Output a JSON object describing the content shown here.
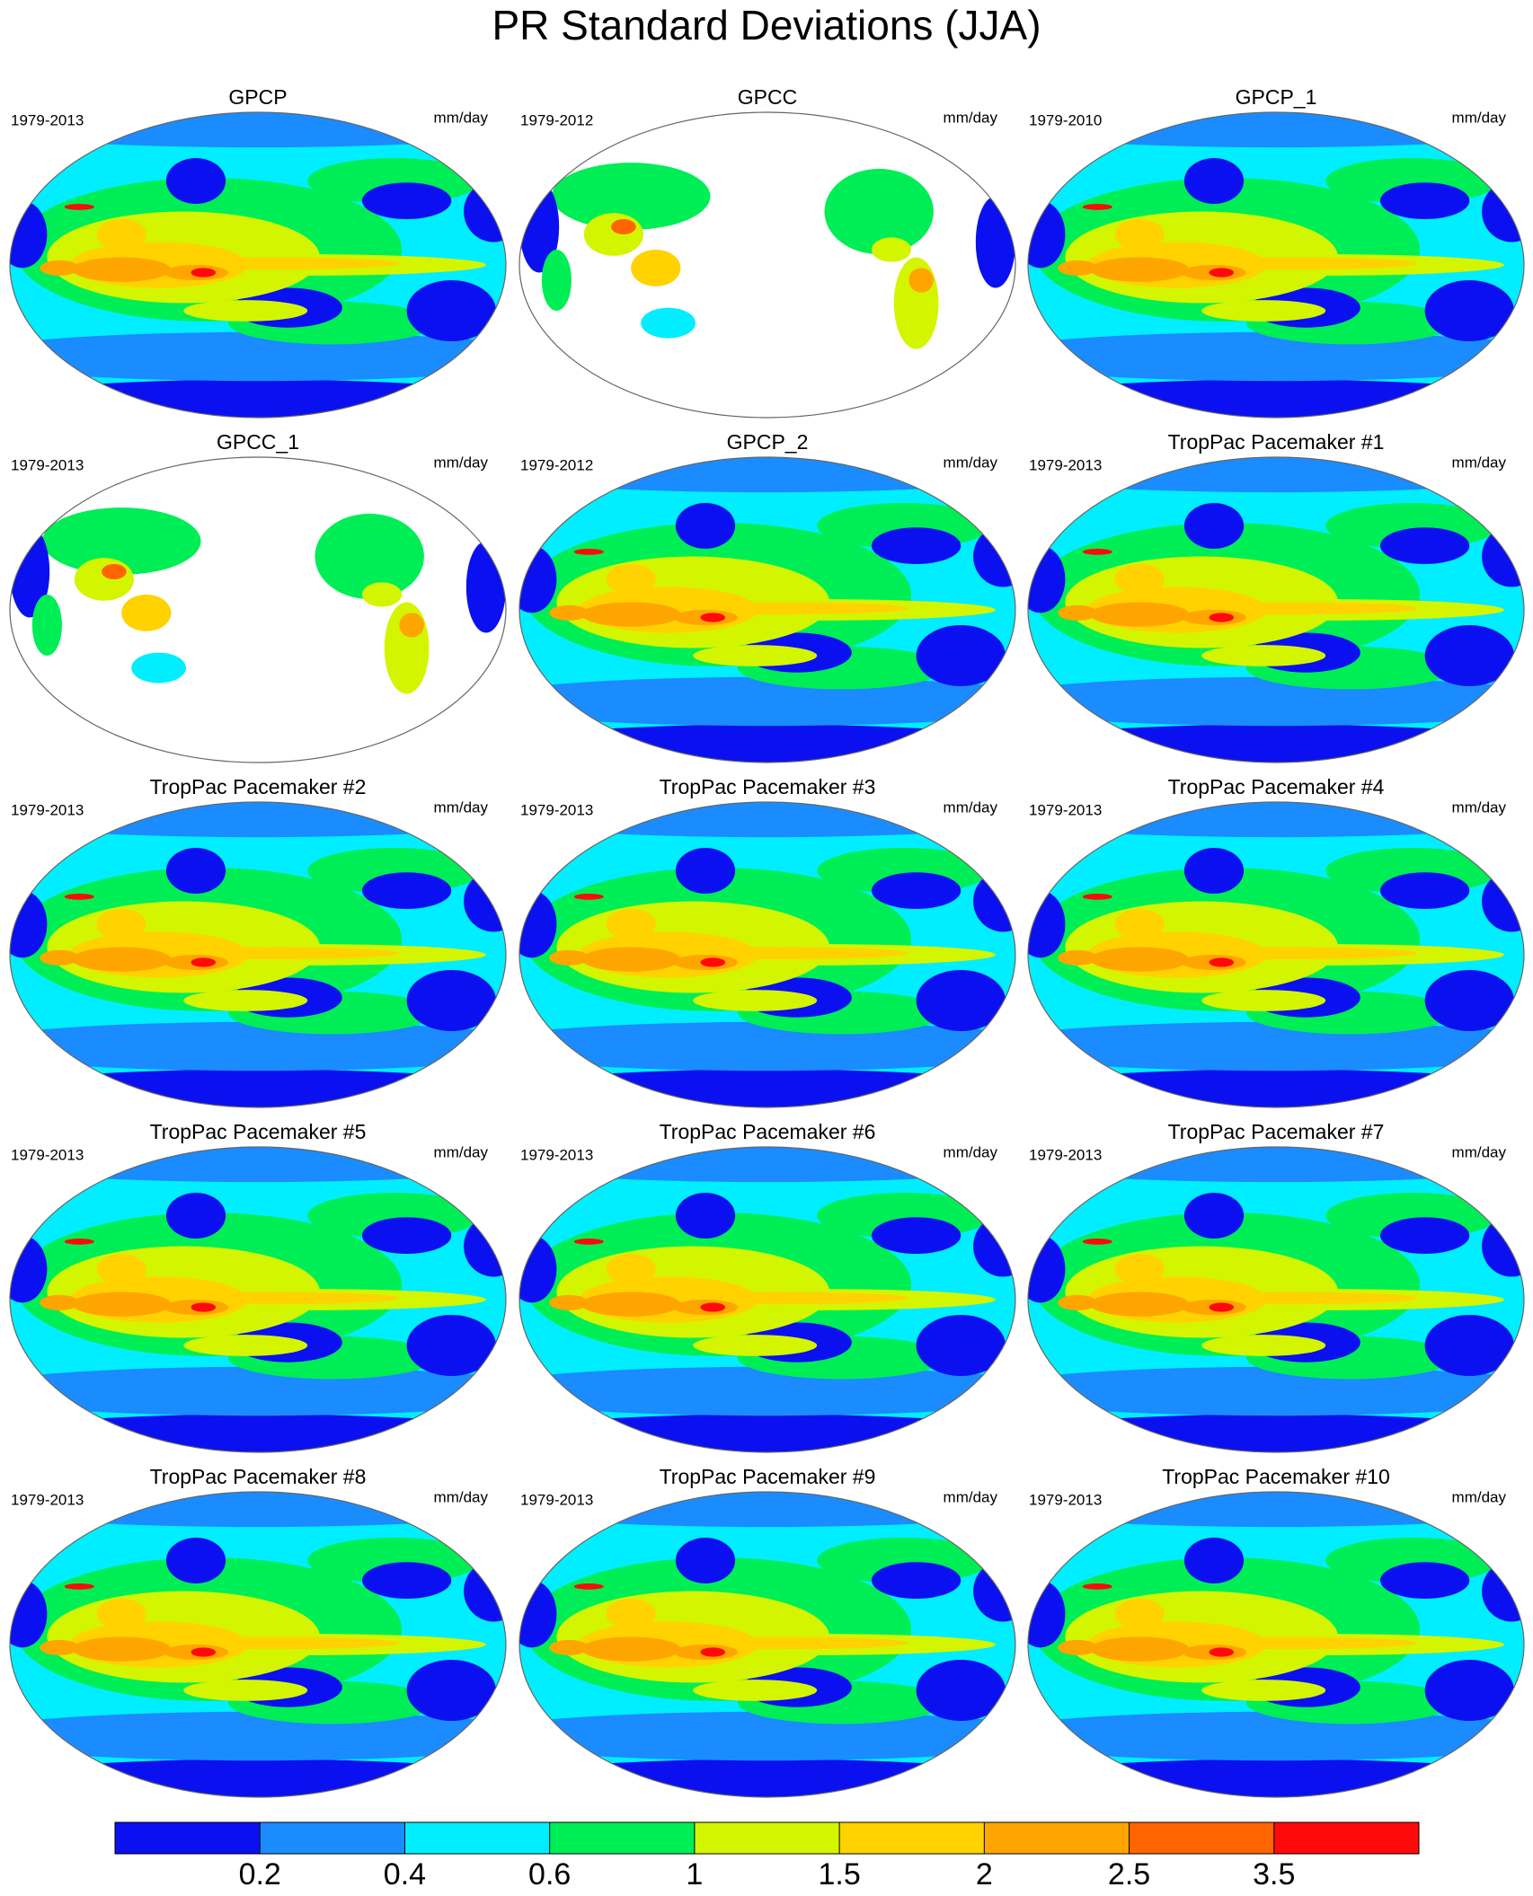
{
  "title": "PR Standard Deviations (JJA)",
  "panels": [
    {
      "title": "GPCP",
      "period": "1979-2013",
      "units": "mm/day",
      "coverage": "global"
    },
    {
      "title": "GPCC",
      "period": "1979-2012",
      "units": "mm/day",
      "coverage": "land"
    },
    {
      "title": "GPCP_1",
      "period": "1979-2010",
      "units": "mm/day",
      "coverage": "global"
    },
    {
      "title": "GPCC_1",
      "period": "1979-2013",
      "units": "mm/day",
      "coverage": "land"
    },
    {
      "title": "GPCP_2",
      "period": "1979-2012",
      "units": "mm/day",
      "coverage": "global"
    },
    {
      "title": "TropPac Pacemaker #1",
      "period": "1979-2013",
      "units": "mm/day",
      "coverage": "global"
    },
    {
      "title": "TropPac Pacemaker #2",
      "period": "1979-2013",
      "units": "mm/day",
      "coverage": "global"
    },
    {
      "title": "TropPac Pacemaker #3",
      "period": "1979-2013",
      "units": "mm/day",
      "coverage": "global"
    },
    {
      "title": "TropPac Pacemaker #4",
      "period": "1979-2013",
      "units": "mm/day",
      "coverage": "global"
    },
    {
      "title": "TropPac Pacemaker #5",
      "period": "1979-2013",
      "units": "mm/day",
      "coverage": "global"
    },
    {
      "title": "TropPac Pacemaker #6",
      "period": "1979-2013",
      "units": "mm/day",
      "coverage": "global"
    },
    {
      "title": "TropPac Pacemaker #7",
      "period": "1979-2013",
      "units": "mm/day",
      "coverage": "global"
    },
    {
      "title": "TropPac Pacemaker #8",
      "period": "1979-2013",
      "units": "mm/day",
      "coverage": "global"
    },
    {
      "title": "TropPac Pacemaker #9",
      "period": "1979-2013",
      "units": "mm/day",
      "coverage": "global"
    },
    {
      "title": "TropPac Pacemaker #10",
      "period": "1979-2013",
      "units": "mm/day",
      "coverage": "global"
    }
  ],
  "colorbar": {
    "colors": [
      "#0a10f0",
      "#1a8cff",
      "#00eeff",
      "#00ee55",
      "#d4f500",
      "#ffd200",
      "#ffa500",
      "#ff6400",
      "#ff0a0a"
    ],
    "ticks": [
      0.2,
      0.4,
      0.6,
      1,
      1.5,
      2,
      2.5,
      3.5
    ]
  }
}
